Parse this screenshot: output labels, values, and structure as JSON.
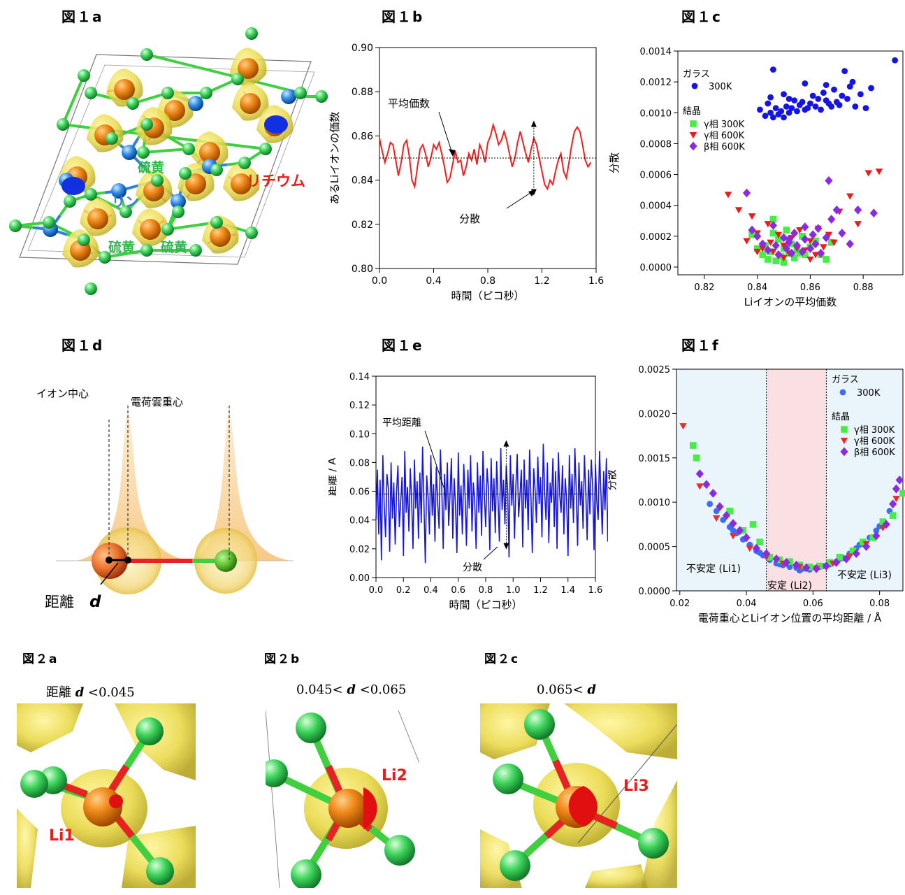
{
  "labels": {
    "fig1a": "図１a",
    "fig1b": "図１b",
    "fig1c": "図１c",
    "fig1d": "図１d",
    "fig1e": "図１e",
    "fig1f": "図１f",
    "fig2a": "図２a",
    "fig2b": "図２b",
    "fig2c": "図２c"
  },
  "fig1a": {
    "sulfur": "硫黄",
    "phosphorus": "リン",
    "lithium": "リチウム",
    "colors": {
      "sulfur": "#2db84d",
      "phosphorus": "#3a7fd9",
      "lithium": "#e81e1e"
    }
  },
  "fig1d": {
    "ion_center": "イオン中心",
    "charge_center": "電荷雲重心",
    "distance_label": "距離",
    "d": "d"
  },
  "fig2": {
    "a_title_prefix": "距離 ",
    "a_d": "d",
    "a_title_suffix": " <0.045",
    "b_title_prefix": "0.045< ",
    "b_d": "d",
    "b_title_suffix": " <0.065",
    "c_title_prefix": "0.065< ",
    "c_d": "d",
    "li1": "Li1",
    "li2": "Li2",
    "li3": "Li3"
  },
  "chart_data": [
    {
      "id": "fig1b",
      "type": "line",
      "xlabel": "時間（ピコ秒）",
      "ylabel": "あるLiイオンの価数",
      "xlim": [
        0,
        1.6
      ],
      "ylim": [
        0.8,
        0.9
      ],
      "xticks": [
        "0.0",
        "0.4",
        "0.8",
        "1.2",
        "1.6"
      ],
      "yticks": [
        "0.80",
        "0.82",
        "0.84",
        "0.86",
        "0.88",
        "0.90"
      ],
      "mean": 0.85,
      "annotation_mean": "平均価数",
      "annotation_var": "分散",
      "color": "#ff1a1a",
      "x": [
        0.0,
        0.02,
        0.04,
        0.06,
        0.08,
        0.1,
        0.12,
        0.14,
        0.16,
        0.18,
        0.2,
        0.22,
        0.24,
        0.26,
        0.28,
        0.3,
        0.32,
        0.34,
        0.36,
        0.38,
        0.4,
        0.42,
        0.44,
        0.46,
        0.48,
        0.5,
        0.52,
        0.54,
        0.56,
        0.58,
        0.6,
        0.62,
        0.64,
        0.66,
        0.68,
        0.7,
        0.72,
        0.74,
        0.76,
        0.78,
        0.8,
        0.82,
        0.84,
        0.86,
        0.88,
        0.9,
        0.92,
        0.94,
        0.96,
        0.98,
        1.0,
        1.02,
        1.04,
        1.06,
        1.08,
        1.1,
        1.12,
        1.14,
        1.16,
        1.18,
        1.2,
        1.22,
        1.24,
        1.26,
        1.28,
        1.3,
        1.32,
        1.34,
        1.36,
        1.38,
        1.4,
        1.42,
        1.44,
        1.46,
        1.48,
        1.5,
        1.52,
        1.54,
        1.56
      ],
      "y": [
        0.859,
        0.853,
        0.848,
        0.852,
        0.857,
        0.856,
        0.849,
        0.842,
        0.848,
        0.856,
        0.858,
        0.851,
        0.84,
        0.837,
        0.846,
        0.854,
        0.856,
        0.852,
        0.846,
        0.85,
        0.856,
        0.854,
        0.857,
        0.852,
        0.846,
        0.839,
        0.841,
        0.847,
        0.853,
        0.848,
        0.849,
        0.842,
        0.846,
        0.852,
        0.849,
        0.854,
        0.847,
        0.856,
        0.853,
        0.848,
        0.857,
        0.86,
        0.865,
        0.861,
        0.856,
        0.858,
        0.862,
        0.858,
        0.852,
        0.846,
        0.85,
        0.857,
        0.862,
        0.857,
        0.852,
        0.848,
        0.854,
        0.859,
        0.856,
        0.85,
        0.844,
        0.838,
        0.836,
        0.84,
        0.838,
        0.844,
        0.849,
        0.852,
        0.844,
        0.841,
        0.848,
        0.856,
        0.862,
        0.864,
        0.862,
        0.856,
        0.849,
        0.846,
        0.848
      ]
    },
    {
      "id": "fig1c",
      "type": "scatter",
      "xlabel": "Liイオンの平均価数",
      "ylabel": "分散",
      "xlim": [
        0.81,
        0.895
      ],
      "ylim": [
        -5e-05,
        0.0014
      ],
      "xticks": [
        "0.82",
        "0.84",
        "0.86",
        "0.88"
      ],
      "yticks": [
        "0.0000",
        "0.0002",
        "0.0004",
        "0.0006",
        "0.0008",
        "0.0010",
        "0.0012",
        "0.0014"
      ],
      "legend_glass": "ガラス",
      "legend_crystal": "結晶",
      "series": [
        {
          "name": "300K",
          "group": "glass",
          "marker": "circle",
          "color": "#1414e6",
          "x": [
            0.841,
            0.843,
            0.844,
            0.845,
            0.846,
            0.846,
            0.847,
            0.848,
            0.849,
            0.85,
            0.85,
            0.851,
            0.852,
            0.853,
            0.854,
            0.855,
            0.856,
            0.857,
            0.858,
            0.859,
            0.86,
            0.861,
            0.862,
            0.863,
            0.864,
            0.865,
            0.866,
            0.867,
            0.868,
            0.869,
            0.87,
            0.871,
            0.872,
            0.873,
            0.874,
            0.875,
            0.876,
            0.877,
            0.879,
            0.881,
            0.883,
            0.892,
            0.845,
            0.852,
            0.858,
            0.866
          ],
          "y": [
            0.00102,
            0.00098,
            0.00106,
            0.001,
            0.00128,
            0.00097,
            0.00103,
            0.00099,
            0.00101,
            0.00112,
            0.00097,
            0.00104,
            0.001,
            0.00103,
            0.00108,
            0.00101,
            0.00105,
            0.00107,
            0.00119,
            0.00103,
            0.00106,
            0.00111,
            0.00104,
            0.00109,
            0.00102,
            0.00113,
            0.00108,
            0.00106,
            0.00104,
            0.00115,
            0.00107,
            0.00105,
            0.00111,
            0.00127,
            0.00109,
            0.00117,
            0.0012,
            0.00104,
            0.00112,
            0.00103,
            0.00116,
            0.00134,
            0.0011,
            0.00109,
            0.00102,
            0.00118
          ]
        },
        {
          "name": "γ相 300K",
          "group": "crystal",
          "marker": "square",
          "color": "#44ee44",
          "x": [
            0.838,
            0.84,
            0.842,
            0.843,
            0.844,
            0.845,
            0.846,
            0.847,
            0.848,
            0.849,
            0.85,
            0.851,
            0.852,
            0.853,
            0.854,
            0.855,
            0.857,
            0.858,
            0.86,
            0.862,
            0.864,
            0.866,
            0.868,
            0.846,
            0.85,
            0.856
          ],
          "y": [
            0.00021,
            0.00012,
            8e-05,
            0.00014,
            5e-05,
            0.0001,
            0.00031,
            4e-05,
            0.00018,
            7e-05,
            0.00012,
            0.00024,
            9e-05,
            0.00015,
            6e-05,
            0.00011,
            0.0002,
            8e-05,
            0.00013,
            0.00017,
            8e-05,
            5e-05,
            0.00016,
            0.00022,
            3e-05,
            9e-05
          ]
        },
        {
          "name": "γ相 600K",
          "group": "crystal",
          "marker": "triangle",
          "color": "#ee1a1a",
          "x": [
            0.829,
            0.833,
            0.836,
            0.838,
            0.84,
            0.842,
            0.844,
            0.845,
            0.846,
            0.848,
            0.85,
            0.852,
            0.853,
            0.855,
            0.856,
            0.858,
            0.86,
            0.862,
            0.863,
            0.865,
            0.867,
            0.869,
            0.871,
            0.875,
            0.878,
            0.882,
            0.886,
            0.84,
            0.85,
            0.86
          ],
          "y": [
            0.00047,
            0.00037,
            0.00017,
            0.00033,
            0.00022,
            0.00012,
            0.00028,
            0.00016,
            0.0001,
            0.00021,
            0.00014,
            9e-05,
            0.00019,
            0.00012,
            0.00024,
            0.00011,
            0.00017,
            8e-05,
            0.00025,
            0.00013,
            0.00021,
            0.00016,
            0.00036,
            0.00046,
            0.00028,
            0.00061,
            0.00062,
            0.0001,
            6e-05,
            5e-05
          ]
        },
        {
          "name": "β相 600K",
          "group": "crystal",
          "marker": "diamond",
          "color": "#8a2be2",
          "x": [
            0.836,
            0.838,
            0.84,
            0.842,
            0.844,
            0.846,
            0.847,
            0.848,
            0.85,
            0.851,
            0.852,
            0.853,
            0.854,
            0.855,
            0.857,
            0.858,
            0.86,
            0.861,
            0.862,
            0.863,
            0.864,
            0.866,
            0.867,
            0.868,
            0.87,
            0.872,
            0.875,
            0.878,
            0.884,
            0.852,
            0.858
          ],
          "y": [
            0.00048,
            0.00024,
            0.0002,
            0.00015,
            0.00011,
            0.00027,
            0.00014,
            8e-05,
            0.00019,
            0.00012,
            0.00016,
            9e-05,
            0.00022,
            0.00014,
            0.0001,
            0.00018,
            0.00012,
            0.00021,
            0.00015,
            0.00025,
            9e-05,
            0.00019,
            0.00056,
            0.00031,
            0.00037,
            0.00022,
            0.00015,
            0.00037,
            0.00035,
            0.00018,
            0.00026
          ]
        }
      ]
    },
    {
      "id": "fig1e",
      "type": "line",
      "xlabel": "時間（ピコ秒）",
      "ylabel": "距離 / Å",
      "xlim": [
        0,
        1.6
      ],
      "ylim": [
        0,
        0.14
      ],
      "xticks": [
        "0.0",
        "0.2",
        "0.4",
        "0.6",
        "0.8",
        "1.0",
        "1.2",
        "1.4",
        "1.6"
      ],
      "yticks": [
        "0.00",
        "0.02",
        "0.04",
        "0.06",
        "0.08",
        "0.10",
        "0.12",
        "0.14"
      ],
      "mean": 0.058,
      "annotation_mean": "平均距離",
      "annotation_var": "分散",
      "color": "#1414e6",
      "x_start": 0.0,
      "x_step": 0.01,
      "y": [
        0.04,
        0.075,
        0.03,
        0.068,
        0.012,
        0.085,
        0.05,
        0.028,
        0.072,
        0.062,
        0.018,
        0.08,
        0.041,
        0.066,
        0.023,
        0.059,
        0.078,
        0.035,
        0.052,
        0.07,
        0.015,
        0.088,
        0.045,
        0.063,
        0.032,
        0.076,
        0.054,
        0.02,
        0.082,
        0.048,
        0.067,
        0.027,
        0.073,
        0.038,
        0.091,
        0.05,
        0.01,
        0.071,
        0.056,
        0.03,
        0.085,
        0.043,
        0.065,
        0.025,
        0.077,
        0.052,
        0.034,
        0.089,
        0.061,
        0.02,
        0.072,
        0.047,
        0.08,
        0.036,
        0.058,
        0.083,
        0.027,
        0.069,
        0.05,
        0.017,
        0.087,
        0.043,
        0.064,
        0.03,
        0.079,
        0.056,
        0.022,
        0.075,
        0.048,
        0.085,
        0.032,
        0.066,
        0.053,
        0.02,
        0.08,
        0.045,
        0.071,
        0.029,
        0.088,
        0.058,
        0.035,
        0.076,
        0.062,
        0.019,
        0.083,
        0.046,
        0.069,
        0.031,
        0.081,
        0.054,
        0.025,
        0.09,
        0.047,
        0.068,
        0.037,
        0.078,
        0.06,
        0.014,
        0.085,
        0.05,
        0.072,
        0.027,
        0.064,
        0.086,
        0.042,
        0.058,
        0.075,
        0.021,
        0.082,
        0.048,
        0.068,
        0.033,
        0.089,
        0.055,
        0.017,
        0.076,
        0.062,
        0.038,
        0.084,
        0.051,
        0.07,
        0.028,
        0.093,
        0.059,
        0.04,
        0.08,
        0.024,
        0.066,
        0.052,
        0.083,
        0.035,
        0.074,
        0.02,
        0.087,
        0.057,
        0.045,
        0.078,
        0.03,
        0.069,
        0.054,
        0.015,
        0.085,
        0.048,
        0.072,
        0.038,
        0.09,
        0.061,
        0.022,
        0.08,
        0.05,
        0.067,
        0.034,
        0.085,
        0.058,
        0.026,
        0.075,
        0.044,
        0.082,
        0.063,
        0.019,
        0.079,
        0.053,
        0.04,
        0.088,
        0.06,
        0.03,
        0.074,
        0.047,
        0.083,
        0.025,
        0.068,
        0.055
      ]
    },
    {
      "id": "fig1f",
      "type": "scatter",
      "xlabel": "電荷重心とLiイオン位置の平均距離 / Å",
      "ylabel": "分散",
      "xlim": [
        0.019,
        0.087
      ],
      "ylim": [
        0,
        0.0025
      ],
      "xticks": [
        "0.02",
        "0.04",
        "0.06",
        "0.08"
      ],
      "yticks": [
        "0.0000",
        "0.0005",
        "0.0010",
        "0.0015",
        "0.0020",
        "0.0025"
      ],
      "legend_glass": "ガラス",
      "legend_crystal": "結晶",
      "regions": [
        {
          "label": "不安定 (Li1)",
          "from": 0.019,
          "to": 0.046,
          "color": "#eaf4fb"
        },
        {
          "label": "安定 (Li2)",
          "from": 0.046,
          "to": 0.064,
          "color": "#fbe0e3"
        },
        {
          "label": "不安定 (Li3)",
          "from": 0.064,
          "to": 0.087,
          "color": "#eaf4fb"
        }
      ],
      "series": [
        {
          "name": "300K",
          "group": "glass",
          "marker": "circle",
          "color": "#3b6ef5",
          "x": [
            0.029,
            0.031,
            0.033,
            0.035,
            0.037,
            0.039,
            0.041,
            0.043,
            0.045,
            0.047,
            0.049,
            0.051,
            0.053,
            0.055,
            0.057,
            0.059,
            0.061,
            0.063,
            0.065,
            0.067,
            0.069,
            0.071,
            0.073,
            0.075,
            0.077,
            0.079,
            0.081,
            0.083,
            0.036,
            0.044,
            0.05,
            0.056,
            0.062,
            0.068,
            0.074,
            0.08
          ],
          "y": [
            0.00098,
            0.0009,
            0.0008,
            0.00072,
            0.00065,
            0.00058,
            0.00052,
            0.00045,
            0.0004,
            0.00035,
            0.00031,
            0.00029,
            0.00027,
            0.00026,
            0.00025,
            0.00024,
            0.00026,
            0.00028,
            0.0003,
            0.00033,
            0.00037,
            0.00042,
            0.00048,
            0.00054,
            0.0006,
            0.00068,
            0.00078,
            0.0009,
            0.00068,
            0.00043,
            0.0003,
            0.00023,
            0.00027,
            0.00036,
            0.00052,
            0.00073
          ]
        },
        {
          "name": "γ相 300K",
          "group": "crystal",
          "marker": "square",
          "color": "#44ee44",
          "x": [
            0.024,
            0.025,
            0.035,
            0.039,
            0.042,
            0.044,
            0.047,
            0.05,
            0.053,
            0.056,
            0.059,
            0.062,
            0.065,
            0.068,
            0.072,
            0.075,
            0.078,
            0.081,
            0.084,
            0.087
          ],
          "y": [
            0.00164,
            0.0015,
            0.0009,
            0.00068,
            0.00075,
            0.00055,
            0.00038,
            0.00035,
            0.00033,
            0.00029,
            0.00027,
            0.00028,
            0.00032,
            0.00038,
            0.00045,
            0.00055,
            0.0006,
            0.00078,
            0.00085,
            0.0011
          ]
        },
        {
          "name": "γ相 600K",
          "group": "crystal",
          "marker": "triangle",
          "color": "#ee2a2a",
          "x": [
            0.021,
            0.026,
            0.031,
            0.036,
            0.041,
            0.046,
            0.051,
            0.056,
            0.061,
            0.066,
            0.071,
            0.076,
            0.081,
            0.085
          ],
          "y": [
            0.00186,
            0.00118,
            0.00082,
            0.00062,
            0.00048,
            0.00038,
            0.00031,
            0.00027,
            0.00025,
            0.00031,
            0.00039,
            0.00053,
            0.00071,
            0.00104
          ]
        },
        {
          "name": "β相 600K",
          "group": "crystal",
          "marker": "diamond",
          "color": "#8a2be2",
          "x": [
            0.026,
            0.028,
            0.03,
            0.032,
            0.034,
            0.036,
            0.038,
            0.04,
            0.043,
            0.046,
            0.049,
            0.052,
            0.055,
            0.058,
            0.061,
            0.064,
            0.067,
            0.07,
            0.073,
            0.076,
            0.079,
            0.082,
            0.084,
            0.085,
            0.086
          ],
          "y": [
            0.00132,
            0.0012,
            0.0011,
            0.00095,
            0.00085,
            0.00076,
            0.00068,
            0.0006,
            0.00048,
            0.00042,
            0.00036,
            0.00032,
            0.00029,
            0.00026,
            0.00025,
            0.00028,
            0.00032,
            0.00036,
            0.00042,
            0.0005,
            0.00062,
            0.00075,
            0.00098,
            0.00115,
            0.00125
          ]
        }
      ]
    }
  ]
}
